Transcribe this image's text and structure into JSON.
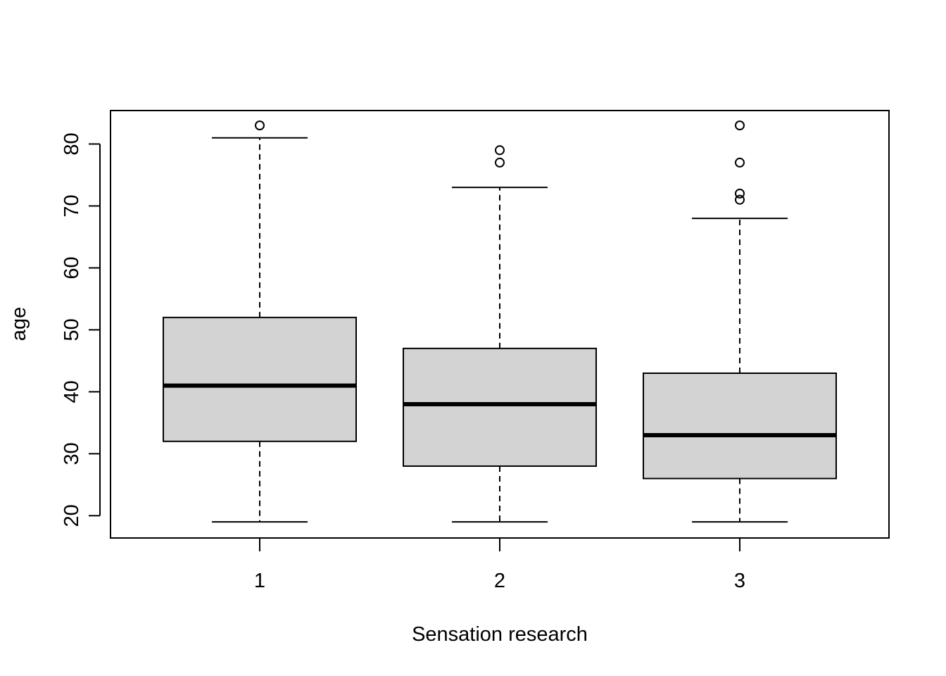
{
  "chart_data": {
    "type": "boxplot",
    "title": "",
    "xlabel": "Sensation research",
    "ylabel": "age",
    "ylim": [
      16.4,
      85.4
    ],
    "yticks": [
      20,
      30,
      40,
      50,
      60,
      70,
      80
    ],
    "grid": false,
    "legend": "none",
    "box_fill": "#d3d3d3",
    "categories": [
      "1",
      "2",
      "3"
    ],
    "boxes": [
      {
        "category": "1",
        "whisker_low": 19,
        "q1": 32,
        "median": 41,
        "q3": 52,
        "whisker_high": 81,
        "outliers": [
          83
        ]
      },
      {
        "category": "2",
        "whisker_low": 19,
        "q1": 28,
        "median": 38,
        "q3": 47,
        "whisker_high": 73,
        "outliers": [
          77,
          79
        ]
      },
      {
        "category": "3",
        "whisker_low": 19,
        "q1": 26,
        "median": 33,
        "q3": 43,
        "whisker_high": 68,
        "outliers": [
          71,
          72,
          77,
          83
        ]
      }
    ]
  }
}
